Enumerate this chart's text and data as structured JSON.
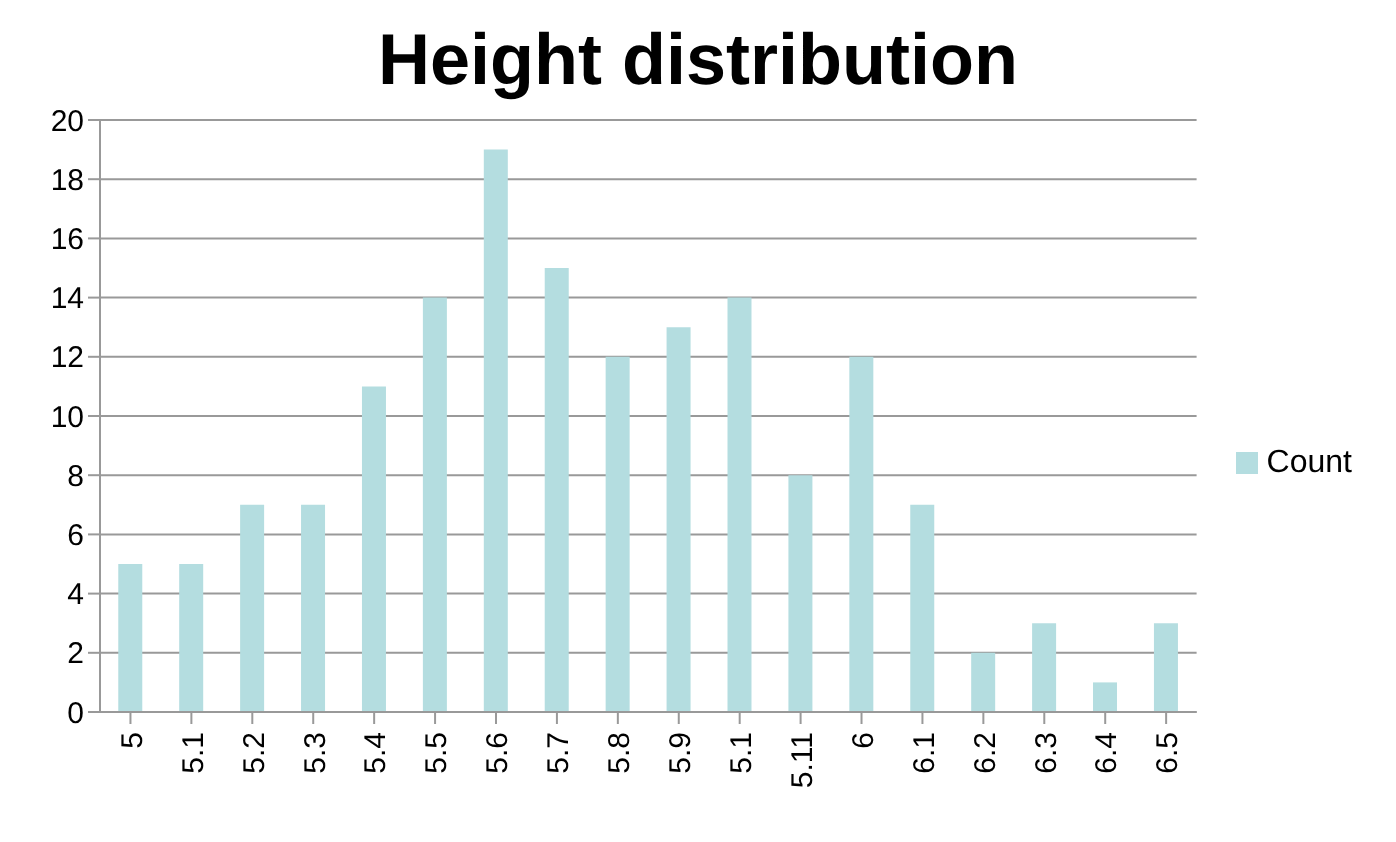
{
  "chart_data": {
    "type": "bar",
    "title": "Height distribution",
    "categories": [
      "5",
      "5.1",
      "5.2",
      "5.3",
      "5.4",
      "5.5",
      "5.6",
      "5.7",
      "5.8",
      "5.9",
      "5.1",
      "5.11",
      "6",
      "6.1",
      "6.2",
      "6.3",
      "6.4",
      "6.5"
    ],
    "series": [
      {
        "name": "Count",
        "color": "#b4dde0",
        "values": [
          5,
          5,
          7,
          7,
          11,
          14,
          19,
          15,
          12,
          13,
          14,
          8,
          12,
          7,
          2,
          3,
          1,
          3
        ]
      }
    ],
    "ylim": [
      0,
      20
    ],
    "yticks": [
      0,
      2,
      4,
      6,
      8,
      10,
      12,
      14,
      16,
      18,
      20
    ],
    "grid": "y",
    "legend": "right"
  }
}
